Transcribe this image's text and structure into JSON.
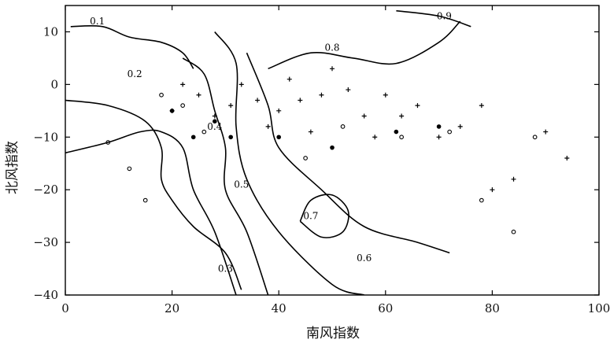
{
  "chart_data": {
    "type": "contour",
    "xlabel": "南风指数",
    "ylabel": "北风指数",
    "xlim": [
      0,
      100
    ],
    "ylim": [
      -40,
      15
    ],
    "x_ticks": [
      0,
      20,
      40,
      60,
      80,
      100
    ],
    "x_tick_labels": [
      "0",
      "20",
      "40",
      "60",
      "80",
      "100"
    ],
    "y_ticks": [
      -40,
      -30,
      -20,
      -10,
      0,
      10
    ],
    "y_tick_labels": [
      "−40",
      "−30",
      "−20",
      "−10",
      "0",
      "10"
    ],
    "grid": false,
    "contours": [
      {
        "level": 0.1,
        "label": "0.1",
        "points": [
          [
            1,
            11
          ],
          [
            7,
            11
          ],
          [
            12,
            9
          ],
          [
            18,
            8
          ],
          [
            22,
            6
          ],
          [
            24,
            3
          ]
        ],
        "label_at": [
          6,
          12
        ]
      },
      {
        "level": 0.2,
        "label": "0.2",
        "points": [
          [
            0,
            -3
          ],
          [
            8,
            -4
          ],
          [
            15,
            -7
          ],
          [
            18,
            -12
          ],
          [
            18,
            -18
          ],
          [
            20,
            -22
          ],
          [
            24,
            -27
          ],
          [
            30,
            -32
          ],
          [
            33,
            -39
          ]
        ],
        "label_at": [
          13,
          2
        ]
      },
      {
        "level": 0.3,
        "label": "0.3",
        "points": [
          [
            0,
            -13
          ],
          [
            8,
            -11
          ],
          [
            14,
            -9
          ],
          [
            18,
            -9
          ],
          [
            22,
            -12
          ],
          [
            24,
            -20
          ],
          [
            28,
            -28
          ],
          [
            32,
            -40
          ]
        ],
        "label_at": [
          30,
          -35
        ]
      },
      {
        "level": 0.4,
        "label": "0.4",
        "points": [
          [
            22,
            5
          ],
          [
            26,
            2
          ],
          [
            28,
            -5
          ],
          [
            30,
            -12
          ],
          [
            30,
            -20
          ],
          [
            34,
            -28
          ],
          [
            38,
            -40
          ]
        ],
        "label_at": [
          28,
          -8
        ]
      },
      {
        "level": 0.5,
        "label": "0.5",
        "points": [
          [
            28,
            10
          ],
          [
            32,
            4
          ],
          [
            32,
            -8
          ],
          [
            34,
            -18
          ],
          [
            40,
            -28
          ],
          [
            50,
            -38
          ],
          [
            56,
            -40
          ]
        ],
        "label_at": [
          33,
          -19
        ]
      },
      {
        "level": 0.6,
        "label": "0.6",
        "points": [
          [
            34,
            6
          ],
          [
            38,
            -4
          ],
          [
            40,
            -12
          ],
          [
            48,
            -20
          ],
          [
            56,
            -27
          ],
          [
            66,
            -30
          ],
          [
            72,
            -32
          ]
        ],
        "label_at": [
          56,
          -33
        ]
      },
      {
        "level": 0.7,
        "label": "0.7",
        "points": [
          [
            44,
            -26
          ],
          [
            46,
            -22
          ],
          [
            50,
            -21
          ],
          [
            53,
            -24
          ],
          [
            52,
            -28
          ],
          [
            48,
            -29
          ],
          [
            44,
            -26
          ]
        ],
        "label_at": [
          46,
          -25
        ]
      },
      {
        "level": 0.8,
        "label": "0.8",
        "points": [
          [
            38,
            3
          ],
          [
            46,
            6
          ],
          [
            54,
            5
          ],
          [
            62,
            4
          ],
          [
            70,
            8
          ],
          [
            74,
            12
          ]
        ],
        "label_at": [
          50,
          7
        ]
      },
      {
        "level": 0.9,
        "label": "0.9",
        "points": [
          [
            62,
            14
          ],
          [
            70,
            13
          ],
          [
            76,
            11
          ]
        ],
        "label_at": [
          71,
          13
        ]
      }
    ],
    "markers": {
      "plus": [
        [
          20,
          -5
        ],
        [
          22,
          0
        ],
        [
          25,
          -2
        ],
        [
          28,
          -6
        ],
        [
          31,
          -4
        ],
        [
          33,
          0
        ],
        [
          36,
          -3
        ],
        [
          38,
          -8
        ],
        [
          40,
          -5
        ],
        [
          42,
          1
        ],
        [
          44,
          -3
        ],
        [
          46,
          -9
        ],
        [
          48,
          -2
        ],
        [
          50,
          3
        ],
        [
          53,
          -1
        ],
        [
          56,
          -6
        ],
        [
          58,
          -10
        ],
        [
          60,
          -2
        ],
        [
          63,
          -6
        ],
        [
          66,
          -4
        ],
        [
          70,
          -10
        ],
        [
          74,
          -8
        ],
        [
          78,
          -4
        ],
        [
          80,
          -20
        ],
        [
          84,
          -18
        ],
        [
          90,
          -9
        ],
        [
          94,
          -14
        ]
      ],
      "circle": [
        [
          8,
          -11
        ],
        [
          12,
          -16
        ],
        [
          15,
          -22
        ],
        [
          18,
          -2
        ],
        [
          22,
          -4
        ],
        [
          26,
          -9
        ],
        [
          45,
          -14
        ],
        [
          52,
          -8
        ],
        [
          63,
          -10
        ],
        [
          72,
          -9
        ],
        [
          78,
          -22
        ],
        [
          84,
          -28
        ],
        [
          88,
          -10
        ]
      ],
      "dot": [
        [
          20,
          -5
        ],
        [
          24,
          -10
        ],
        [
          28,
          -7
        ],
        [
          31,
          -10
        ],
        [
          40,
          -10
        ],
        [
          50,
          -12
        ],
        [
          62,
          -9
        ],
        [
          70,
          -8
        ]
      ]
    }
  }
}
